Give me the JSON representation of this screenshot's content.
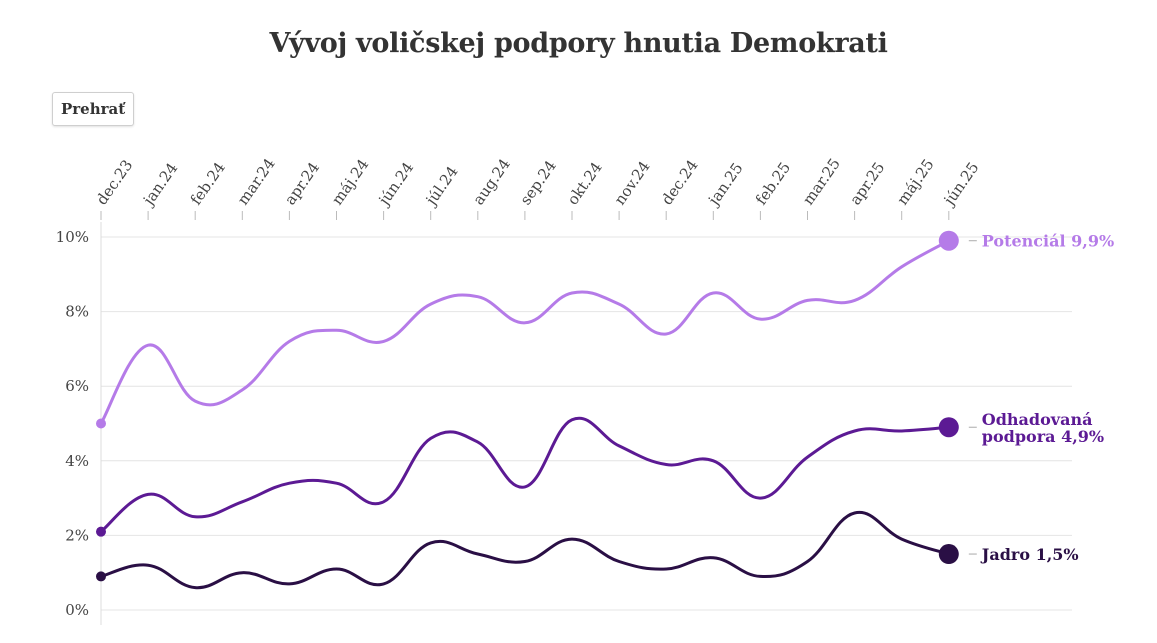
{
  "title": "Vývoj voličskej podpory hnutia Demokrati",
  "controls": {
    "play_label": "Prehrať"
  },
  "chart_data": {
    "type": "line",
    "title": "Vývoj voličskej podpory hnutia Demokrati",
    "categories": [
      "dec.23",
      "jan.24",
      "feb.24",
      "mar.24",
      "apr.24",
      "máj.24",
      "jún.24",
      "júl.24",
      "aug.24",
      "sep.24",
      "okt.24",
      "nov.24",
      "dec.24",
      "jan.25",
      "feb.25",
      "mar.25",
      "apr.25",
      "máj.25",
      "jún.25"
    ],
    "y_ticks": [
      "0%",
      "2%",
      "4%",
      "6%",
      "8%",
      "10%"
    ],
    "ylim": [
      0,
      10
    ],
    "grid": true,
    "series": [
      {
        "id": "potencial",
        "color": "#b57be8",
        "values": [
          5.0,
          7.1,
          5.6,
          5.9,
          7.2,
          7.5,
          7.2,
          8.2,
          8.4,
          7.7,
          8.5,
          8.2,
          7.4,
          8.5,
          7.8,
          8.3,
          8.3,
          9.2,
          9.9
        ],
        "end_label_lines": [
          "Potenciál 9,9%"
        ]
      },
      {
        "id": "odhadovana",
        "color": "#5c1a94",
        "values": [
          2.1,
          3.1,
          2.5,
          2.9,
          3.4,
          3.4,
          2.9,
          4.6,
          4.5,
          3.3,
          5.1,
          4.4,
          3.9,
          4.0,
          3.0,
          4.1,
          4.8,
          4.8,
          4.9
        ],
        "end_label_lines": [
          "Odhadovaná",
          "podpora 4,9%"
        ]
      },
      {
        "id": "jadro",
        "color": "#2a0f45",
        "values": [
          0.9,
          1.2,
          0.6,
          1.0,
          0.7,
          1.1,
          0.7,
          1.8,
          1.5,
          1.3,
          1.9,
          1.3,
          1.1,
          1.4,
          0.9,
          1.3,
          2.6,
          1.9,
          1.5
        ],
        "end_label_lines": [
          "Jadro 1,5%"
        ]
      }
    ]
  }
}
